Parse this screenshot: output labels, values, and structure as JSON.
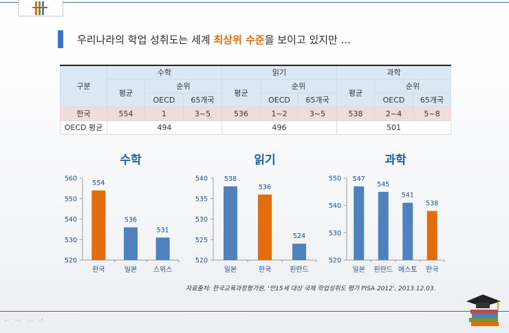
{
  "headline": {
    "before": "우리나라의 학업 성취도는 세계 ",
    "highlight": "최상위 수준",
    "after": "을 보이고 있지만 ..."
  },
  "table": {
    "h_category": "구분",
    "subjects": [
      "수학",
      "읽기",
      "과학"
    ],
    "h_average": "평균",
    "h_rank": "순위",
    "h_oecd": "OECD",
    "h_65": "65개국",
    "korea_label": "한국",
    "korea": [
      {
        "avg": "554",
        "oecd": "1",
        "c65": "3~5"
      },
      {
        "avg": "536",
        "oecd": "1~2",
        "c65": "3~5"
      },
      {
        "avg": "538",
        "oecd": "2~4",
        "c65": "5~8"
      }
    ],
    "oecd_avg_label": "OECD 평균",
    "oecd_avg": [
      "494",
      "496",
      "501"
    ]
  },
  "source": "자료출처: 한국교육과정평가원, '만15세 대상 국제 학업성취도 평가 PISA 2012', 2013.12.03.",
  "colors": {
    "blue": "#4f81bd",
    "orange": "#e46c0a",
    "title": "#1f5fa8"
  },
  "chart_data": [
    {
      "type": "bar",
      "title": "수학",
      "categories": [
        "한국",
        "일본",
        "스위스"
      ],
      "values": [
        554,
        536,
        531
      ],
      "highlight": "한국",
      "ylim": [
        520,
        560
      ],
      "ticks": [
        520,
        530,
        540,
        550,
        560
      ]
    },
    {
      "type": "bar",
      "title": "읽기",
      "categories": [
        "일본",
        "한국",
        "핀란드"
      ],
      "values": [
        538,
        536,
        524
      ],
      "highlight": "한국",
      "ylim": [
        520,
        540
      ],
      "ticks": [
        520,
        525,
        530,
        535,
        540
      ]
    },
    {
      "type": "bar",
      "title": "과학",
      "categories": [
        "일본",
        "핀란드",
        "에스토",
        "한국"
      ],
      "values": [
        547,
        545,
        541,
        538
      ],
      "highlight": "한국",
      "ylim": [
        520,
        550
      ],
      "ticks": [
        520,
        530,
        540,
        550
      ]
    }
  ]
}
